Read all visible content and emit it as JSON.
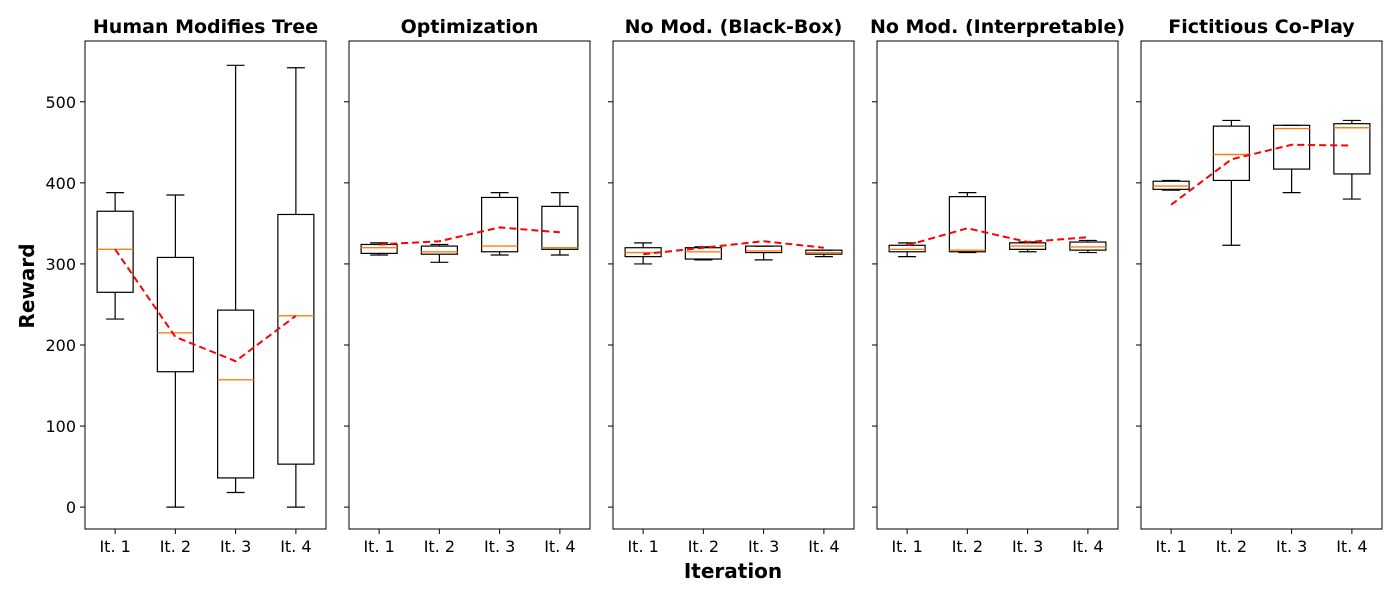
{
  "chart_data": {
    "type": "box",
    "ylabel": "Reward",
    "xlabel": "Iteration",
    "ylim": [
      -27,
      575
    ],
    "yticks": [
      0,
      100,
      200,
      300,
      400,
      500
    ],
    "categories": [
      "It. 1",
      "It. 2",
      "It. 3",
      "It. 4"
    ],
    "colors": {
      "box": "#000000",
      "median": "#ff7f0e",
      "mean_line": "#ff0000"
    },
    "panels": [
      {
        "title": "Human Modifies Tree",
        "boxes": [
          {
            "whisker_low": 232,
            "q1": 265,
            "median": 318,
            "q3": 365,
            "whisker_high": 388
          },
          {
            "whisker_low": 0,
            "q1": 167,
            "median": 215,
            "q3": 308,
            "whisker_high": 385
          },
          {
            "whisker_low": 18,
            "q1": 36,
            "median": 157,
            "q3": 243,
            "whisker_high": 545
          },
          {
            "whisker_low": 0,
            "q1": 53,
            "median": 236,
            "q3": 361,
            "whisker_high": 542
          }
        ],
        "mean": [
          318,
          210,
          180,
          236
        ]
      },
      {
        "title": "Optimization",
        "boxes": [
          {
            "whisker_low": 311,
            "q1": 313,
            "median": 320,
            "q3": 324,
            "whisker_high": 326
          },
          {
            "whisker_low": 302,
            "q1": 312,
            "median": 315,
            "q3": 322,
            "whisker_high": 324
          },
          {
            "whisker_low": 311,
            "q1": 315,
            "median": 322,
            "q3": 382,
            "whisker_high": 388
          },
          {
            "whisker_low": 311,
            "q1": 318,
            "median": 320,
            "q3": 371,
            "whisker_high": 388
          }
        ],
        "mean": [
          324,
          328,
          345,
          339
        ]
      },
      {
        "title": "No Mod. (Black-Box)",
        "boxes": [
          {
            "whisker_low": 300,
            "q1": 309,
            "median": 314,
            "q3": 320,
            "whisker_high": 326
          },
          {
            "whisker_low": 305,
            "q1": 306,
            "median": 315,
            "q3": 320,
            "whisker_high": 321
          },
          {
            "whisker_low": 305,
            "q1": 314,
            "median": 316,
            "q3": 322,
            "whisker_high": 322
          },
          {
            "whisker_low": 309,
            "q1": 312,
            "median": 314,
            "q3": 317,
            "whisker_high": 317
          }
        ],
        "mean": [
          312,
          320,
          328,
          320
        ]
      },
      {
        "title": "No Mod. (Interpretable)",
        "boxes": [
          {
            "whisker_low": 309,
            "q1": 315,
            "median": 318,
            "q3": 323,
            "whisker_high": 326
          },
          {
            "whisker_low": 314,
            "q1": 315,
            "median": 317,
            "q3": 383,
            "whisker_high": 388
          },
          {
            "whisker_low": 315,
            "q1": 318,
            "median": 322,
            "q3": 326,
            "whisker_high": 327
          },
          {
            "whisker_low": 314,
            "q1": 317,
            "median": 321,
            "q3": 327,
            "whisker_high": 329
          }
        ],
        "mean": [
          323,
          344,
          327,
          333
        ]
      },
      {
        "title": "Fictitious Co-Play",
        "boxes": [
          {
            "whisker_low": 391,
            "q1": 392,
            "median": 396,
            "q3": 402,
            "whisker_high": 403
          },
          {
            "whisker_low": 323,
            "q1": 403,
            "median": 435,
            "q3": 470,
            "whisker_high": 477
          },
          {
            "whisker_low": 388,
            "q1": 417,
            "median": 467,
            "q3": 471,
            "whisker_high": 471
          },
          {
            "whisker_low": 380,
            "q1": 411,
            "median": 468,
            "q3": 473,
            "whisker_high": 477
          }
        ],
        "mean": [
          373,
          429,
          447,
          446
        ]
      }
    ]
  }
}
